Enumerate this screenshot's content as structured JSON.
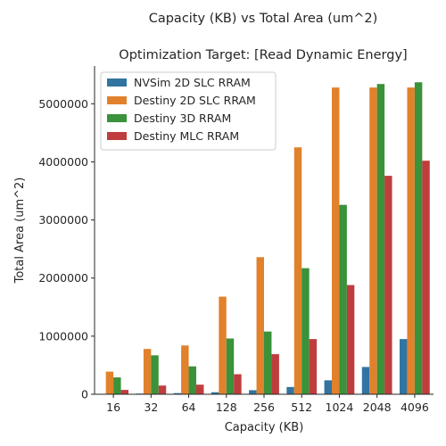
{
  "chart_data": {
    "type": "bar",
    "title": "Capacity (KB) vs Total Area (um^2)",
    "subtitle": "Optimization Target: [Read Dynamic Energy]",
    "xlabel": "Capacity (KB)",
    "ylabel": "Total Area (um^2)",
    "categories": [
      "16",
      "32",
      "64",
      "128",
      "256",
      "512",
      "1024",
      "2048",
      "4096"
    ],
    "ylim": [
      0,
      5650000
    ],
    "yticks": [
      0,
      1000000,
      2000000,
      3000000,
      4000000,
      5000000
    ],
    "ytick_labels": [
      "0",
      "1000000",
      "2000000",
      "3000000",
      "4000000",
      "5000000"
    ],
    "legend_position": "top-left",
    "series": [
      {
        "name": "NVSim 2D SLC RRAM",
        "color": "#3274a1",
        "values": [
          8000,
          12000,
          20000,
          35000,
          70000,
          125000,
          240000,
          470000,
          950000
        ]
      },
      {
        "name": "Destiny 2D SLC RRAM",
        "color": "#e1812c",
        "values": [
          390000,
          780000,
          840000,
          1680000,
          2360000,
          4250000,
          5280000,
          5280000,
          5280000
        ]
      },
      {
        "name": "Destiny 3D RRAM",
        "color": "#3a923a",
        "values": [
          290000,
          670000,
          480000,
          960000,
          1080000,
          2170000,
          3260000,
          5340000,
          5370000
        ]
      },
      {
        "name": "Destiny MLC RRAM",
        "color": "#c03d3e",
        "values": [
          75000,
          150000,
          165000,
          345000,
          690000,
          950000,
          1880000,
          3760000,
          4020000
        ]
      }
    ]
  }
}
